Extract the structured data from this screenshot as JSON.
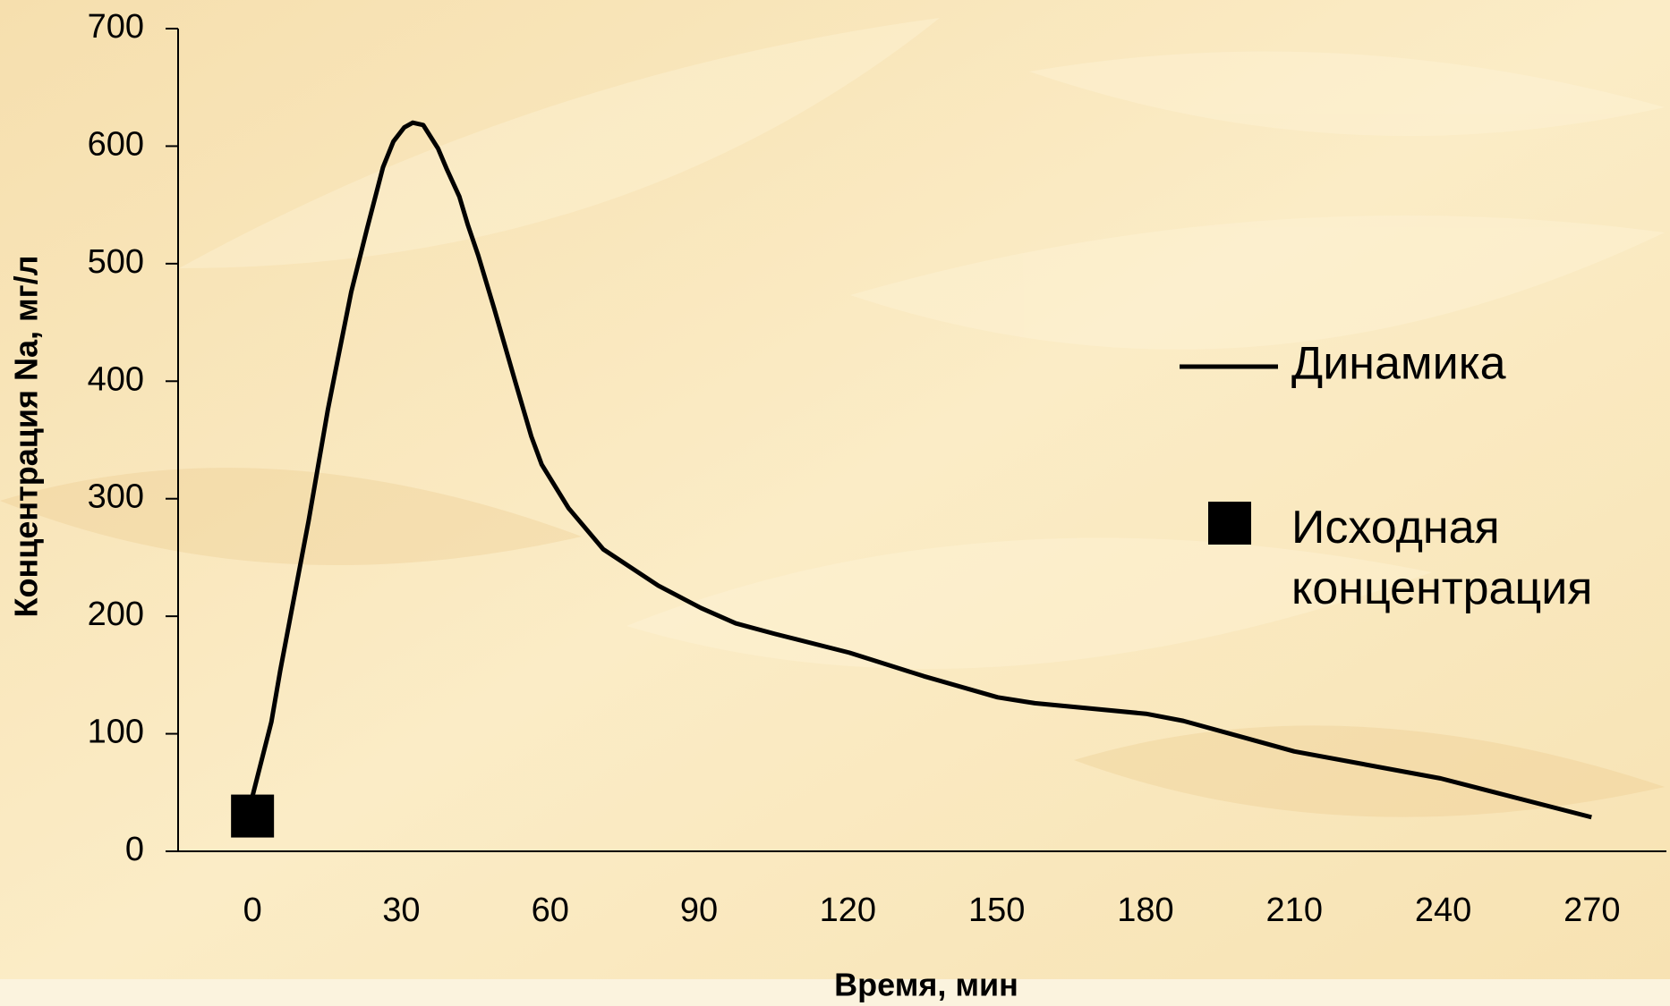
{
  "chart_data": {
    "type": "line",
    "x_label": "Время, мин",
    "y_label": "Концентрация Na, мг/л",
    "xlim": [
      -15,
      285
    ],
    "xticks": [
      0,
      30,
      60,
      90,
      120,
      150,
      180,
      210,
      240,
      270
    ],
    "ylim": [
      0,
      700
    ],
    "yticks": [
      0,
      100,
      200,
      300,
      400,
      500,
      600,
      700
    ],
    "legend": "right",
    "series": [
      {
        "name": "Динамика",
        "color": "#000000",
        "style": "line",
        "x": [
          0,
          3.8,
          5.6,
          11.3,
          15.2,
          17.3,
          19.9,
          23.1,
          26.3,
          28.4,
          30.6,
          32.3,
          34.4,
          37.4,
          39.1,
          41.7,
          43.4,
          45.5,
          48.7,
          53,
          56.2,
          58.3,
          63.7,
          70.7,
          81.8,
          90.4,
          97.4,
          105.3,
          120.3,
          135.3,
          150.2,
          157.7,
          180.1,
          187.6,
          210,
          239.5,
          269.9
        ],
        "values": [
          47,
          110,
          154,
          281,
          376,
          421,
          476,
          530,
          582,
          604,
          616,
          620,
          618,
          598,
          581,
          557,
          533,
          507,
          462,
          399,
          353,
          329,
          292,
          257,
          226,
          207,
          194,
          185,
          169,
          149,
          131,
          126,
          117,
          111,
          85,
          62,
          29
        ]
      },
      {
        "name": "Исходная концентрация",
        "color": "#000000",
        "style": "square",
        "x": [
          0
        ],
        "values": [
          30
        ]
      }
    ]
  }
}
